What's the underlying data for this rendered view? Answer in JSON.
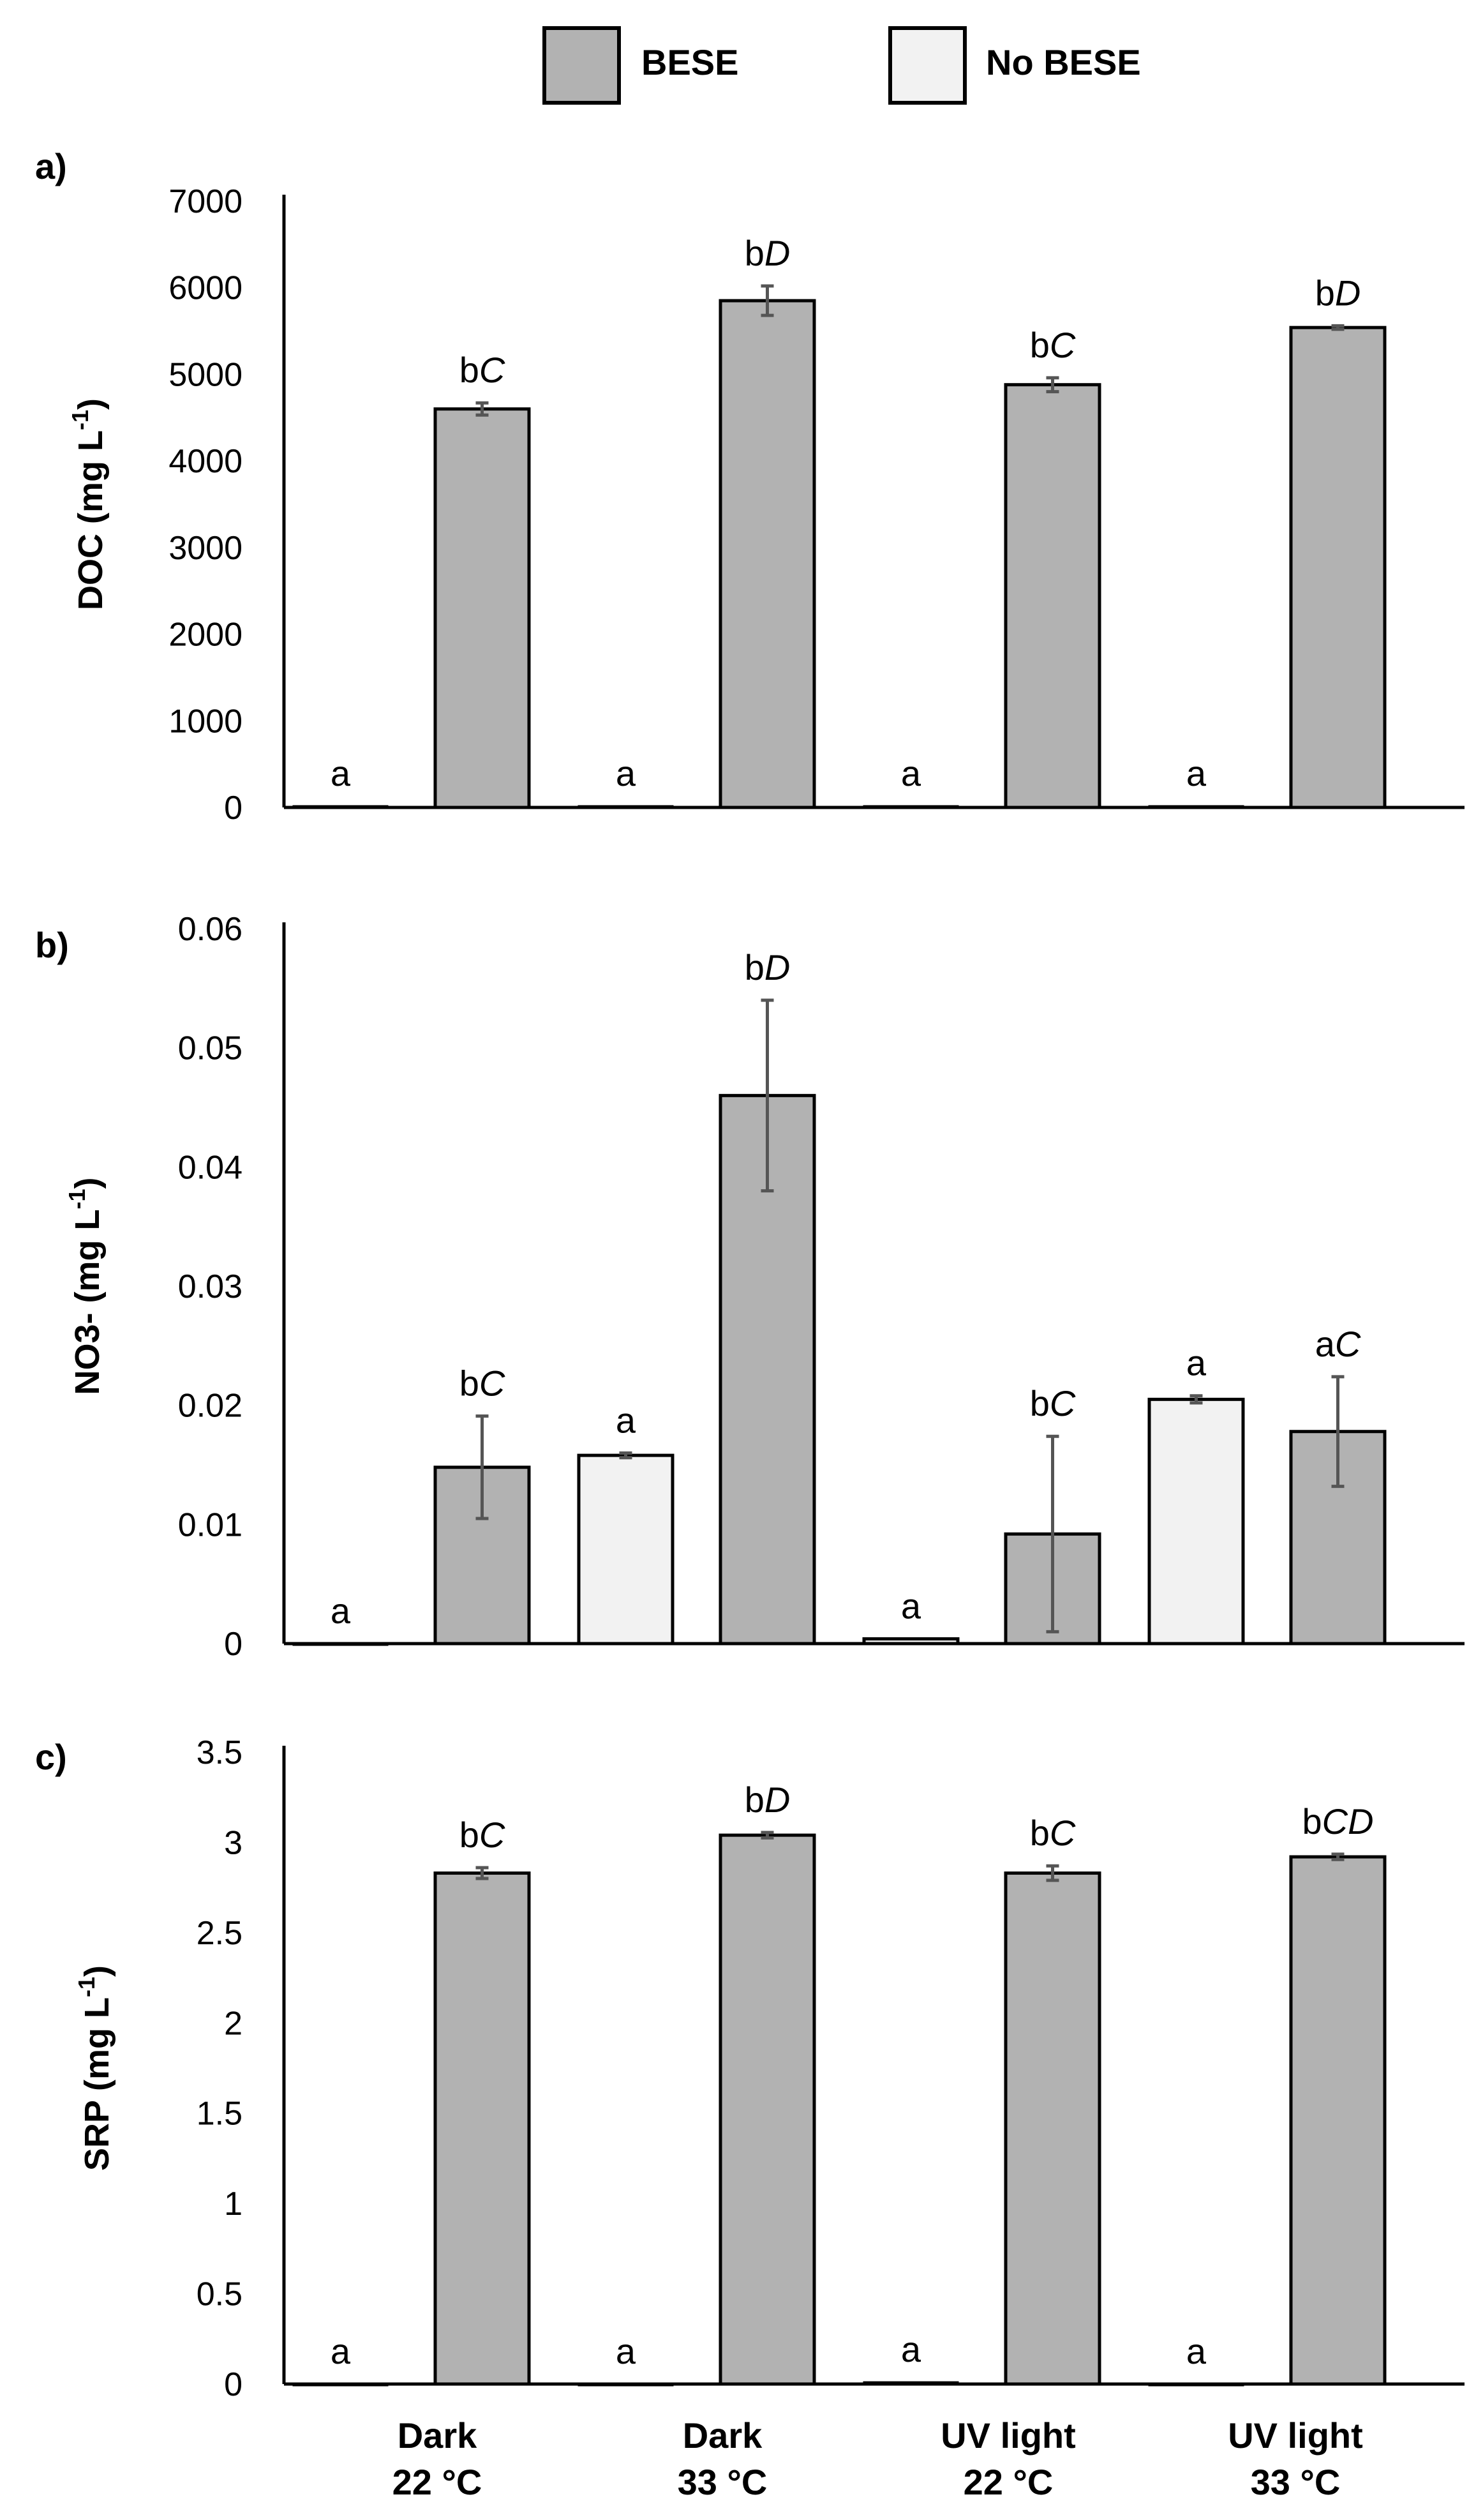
{
  "legend": {
    "items": [
      {
        "label": "BESE",
        "color": "#b2b2b2"
      },
      {
        "label": "No BESE",
        "color": "#f2f2f2"
      }
    ]
  },
  "x_categories": [
    {
      "line1": "Dark",
      "line2": "22 °C"
    },
    {
      "line1": "Dark",
      "line2": "33 °C"
    },
    {
      "line1": "UV  light",
      "line2": "22 °C"
    },
    {
      "line1": "UV light",
      "line2": "33 °C"
    }
  ],
  "colors": {
    "bese": "#b2b2b2",
    "no_bese": "#f2f2f2",
    "axis": "#000000",
    "error_bar": "#555555"
  },
  "chart_data": [
    {
      "type": "bar",
      "panel_label": "a)",
      "ylabel_main": "DOC (mg L",
      "ylabel_sup": "-1",
      "ylabel_end": ")",
      "ylim": [
        0,
        7000
      ],
      "yticks": [
        "0",
        "1000",
        "2000",
        "3000",
        "4000",
        "5000",
        "6000",
        "7000"
      ],
      "bars": [
        {
          "group": 0,
          "series": "No BESE",
          "value": 15,
          "error": 0,
          "sig_letter": "a",
          "sig_italic": ""
        },
        {
          "group": 0,
          "series": "BESE",
          "value": 4600,
          "error": 70,
          "sig_letter": "b",
          "sig_italic": "C"
        },
        {
          "group": 1,
          "series": "No BESE",
          "value": 15,
          "error": 0,
          "sig_letter": "a",
          "sig_italic": ""
        },
        {
          "group": 1,
          "series": "BESE",
          "value": 5850,
          "error": 170,
          "sig_letter": "b",
          "sig_italic": "D"
        },
        {
          "group": 2,
          "series": "No BESE",
          "value": 15,
          "error": 0,
          "sig_letter": "a",
          "sig_italic": ""
        },
        {
          "group": 2,
          "series": "BESE",
          "value": 4880,
          "error": 80,
          "sig_letter": "b",
          "sig_italic": "C"
        },
        {
          "group": 3,
          "series": "No BESE",
          "value": 15,
          "error": 0,
          "sig_letter": "a",
          "sig_italic": ""
        },
        {
          "group": 3,
          "series": "BESE",
          "value": 5540,
          "error": 20,
          "sig_letter": "b",
          "sig_italic": "D"
        }
      ]
    },
    {
      "type": "bar",
      "panel_label": "b)",
      "ylabel_main": "NO3- (mg L",
      "ylabel_sup": "-1",
      "ylabel_end": ")",
      "ylim": [
        0,
        0.06
      ],
      "yticks": [
        "0",
        "0.01",
        "0.02",
        "0.03",
        "0.04",
        "0.05",
        "0.06"
      ],
      "bars": [
        {
          "group": 0,
          "series": "No BESE",
          "value": 0.0,
          "error": 0,
          "sig_letter": "a",
          "sig_italic": ""
        },
        {
          "group": 0,
          "series": "BESE",
          "value": 0.0148,
          "error": 0.0043,
          "sig_letter": "b",
          "sig_italic": "C"
        },
        {
          "group": 1,
          "series": "No BESE",
          "value": 0.0158,
          "error": 0.0002,
          "sig_letter": "a",
          "sig_italic": ""
        },
        {
          "group": 1,
          "series": "BESE",
          "value": 0.046,
          "error": 0.008,
          "sig_letter": "b",
          "sig_italic": "D"
        },
        {
          "group": 2,
          "series": "No BESE",
          "value": 0.0004,
          "error": 0,
          "sig_letter": "a",
          "sig_italic": ""
        },
        {
          "group": 2,
          "series": "BESE",
          "value": 0.0092,
          "error": 0.0082,
          "sig_letter": "b",
          "sig_italic": "C"
        },
        {
          "group": 3,
          "series": "No BESE",
          "value": 0.0205,
          "error": 0.0003,
          "sig_letter": "a",
          "sig_italic": ""
        },
        {
          "group": 3,
          "series": "BESE",
          "value": 0.0178,
          "error": 0.0046,
          "sig_letter": "a",
          "sig_italic": "C"
        }
      ]
    },
    {
      "type": "bar",
      "panel_label": "c)",
      "ylabel_main": "SRP (mg L",
      "ylabel_sup": "-1",
      "ylabel_end": ")",
      "ylim": [
        0,
        3.5
      ],
      "yticks": [
        "0",
        "0.5",
        "1",
        "1.5",
        "2",
        "2.5",
        "3",
        "3.5"
      ],
      "bars": [
        {
          "group": 0,
          "series": "No BESE",
          "value": 0.0,
          "error": 0,
          "sig_letter": "a",
          "sig_italic": ""
        },
        {
          "group": 0,
          "series": "BESE",
          "value": 2.83,
          "error": 0.03,
          "sig_letter": "b",
          "sig_italic": "C"
        },
        {
          "group": 1,
          "series": "No BESE",
          "value": 0.0,
          "error": 0,
          "sig_letter": "a",
          "sig_italic": ""
        },
        {
          "group": 1,
          "series": "BESE",
          "value": 3.04,
          "error": 0.015,
          "sig_letter": "b",
          "sig_italic": "D"
        },
        {
          "group": 2,
          "series": "No BESE",
          "value": 0.01,
          "error": 0,
          "sig_letter": "a",
          "sig_italic": ""
        },
        {
          "group": 2,
          "series": "BESE",
          "value": 2.83,
          "error": 0.04,
          "sig_letter": "b",
          "sig_italic": "C"
        },
        {
          "group": 3,
          "series": "No BESE",
          "value": 0.0,
          "error": 0,
          "sig_letter": "a",
          "sig_italic": ""
        },
        {
          "group": 3,
          "series": "BESE",
          "value": 2.92,
          "error": 0.015,
          "sig_letter": "b",
          "sig_italic": "CD"
        }
      ]
    }
  ]
}
